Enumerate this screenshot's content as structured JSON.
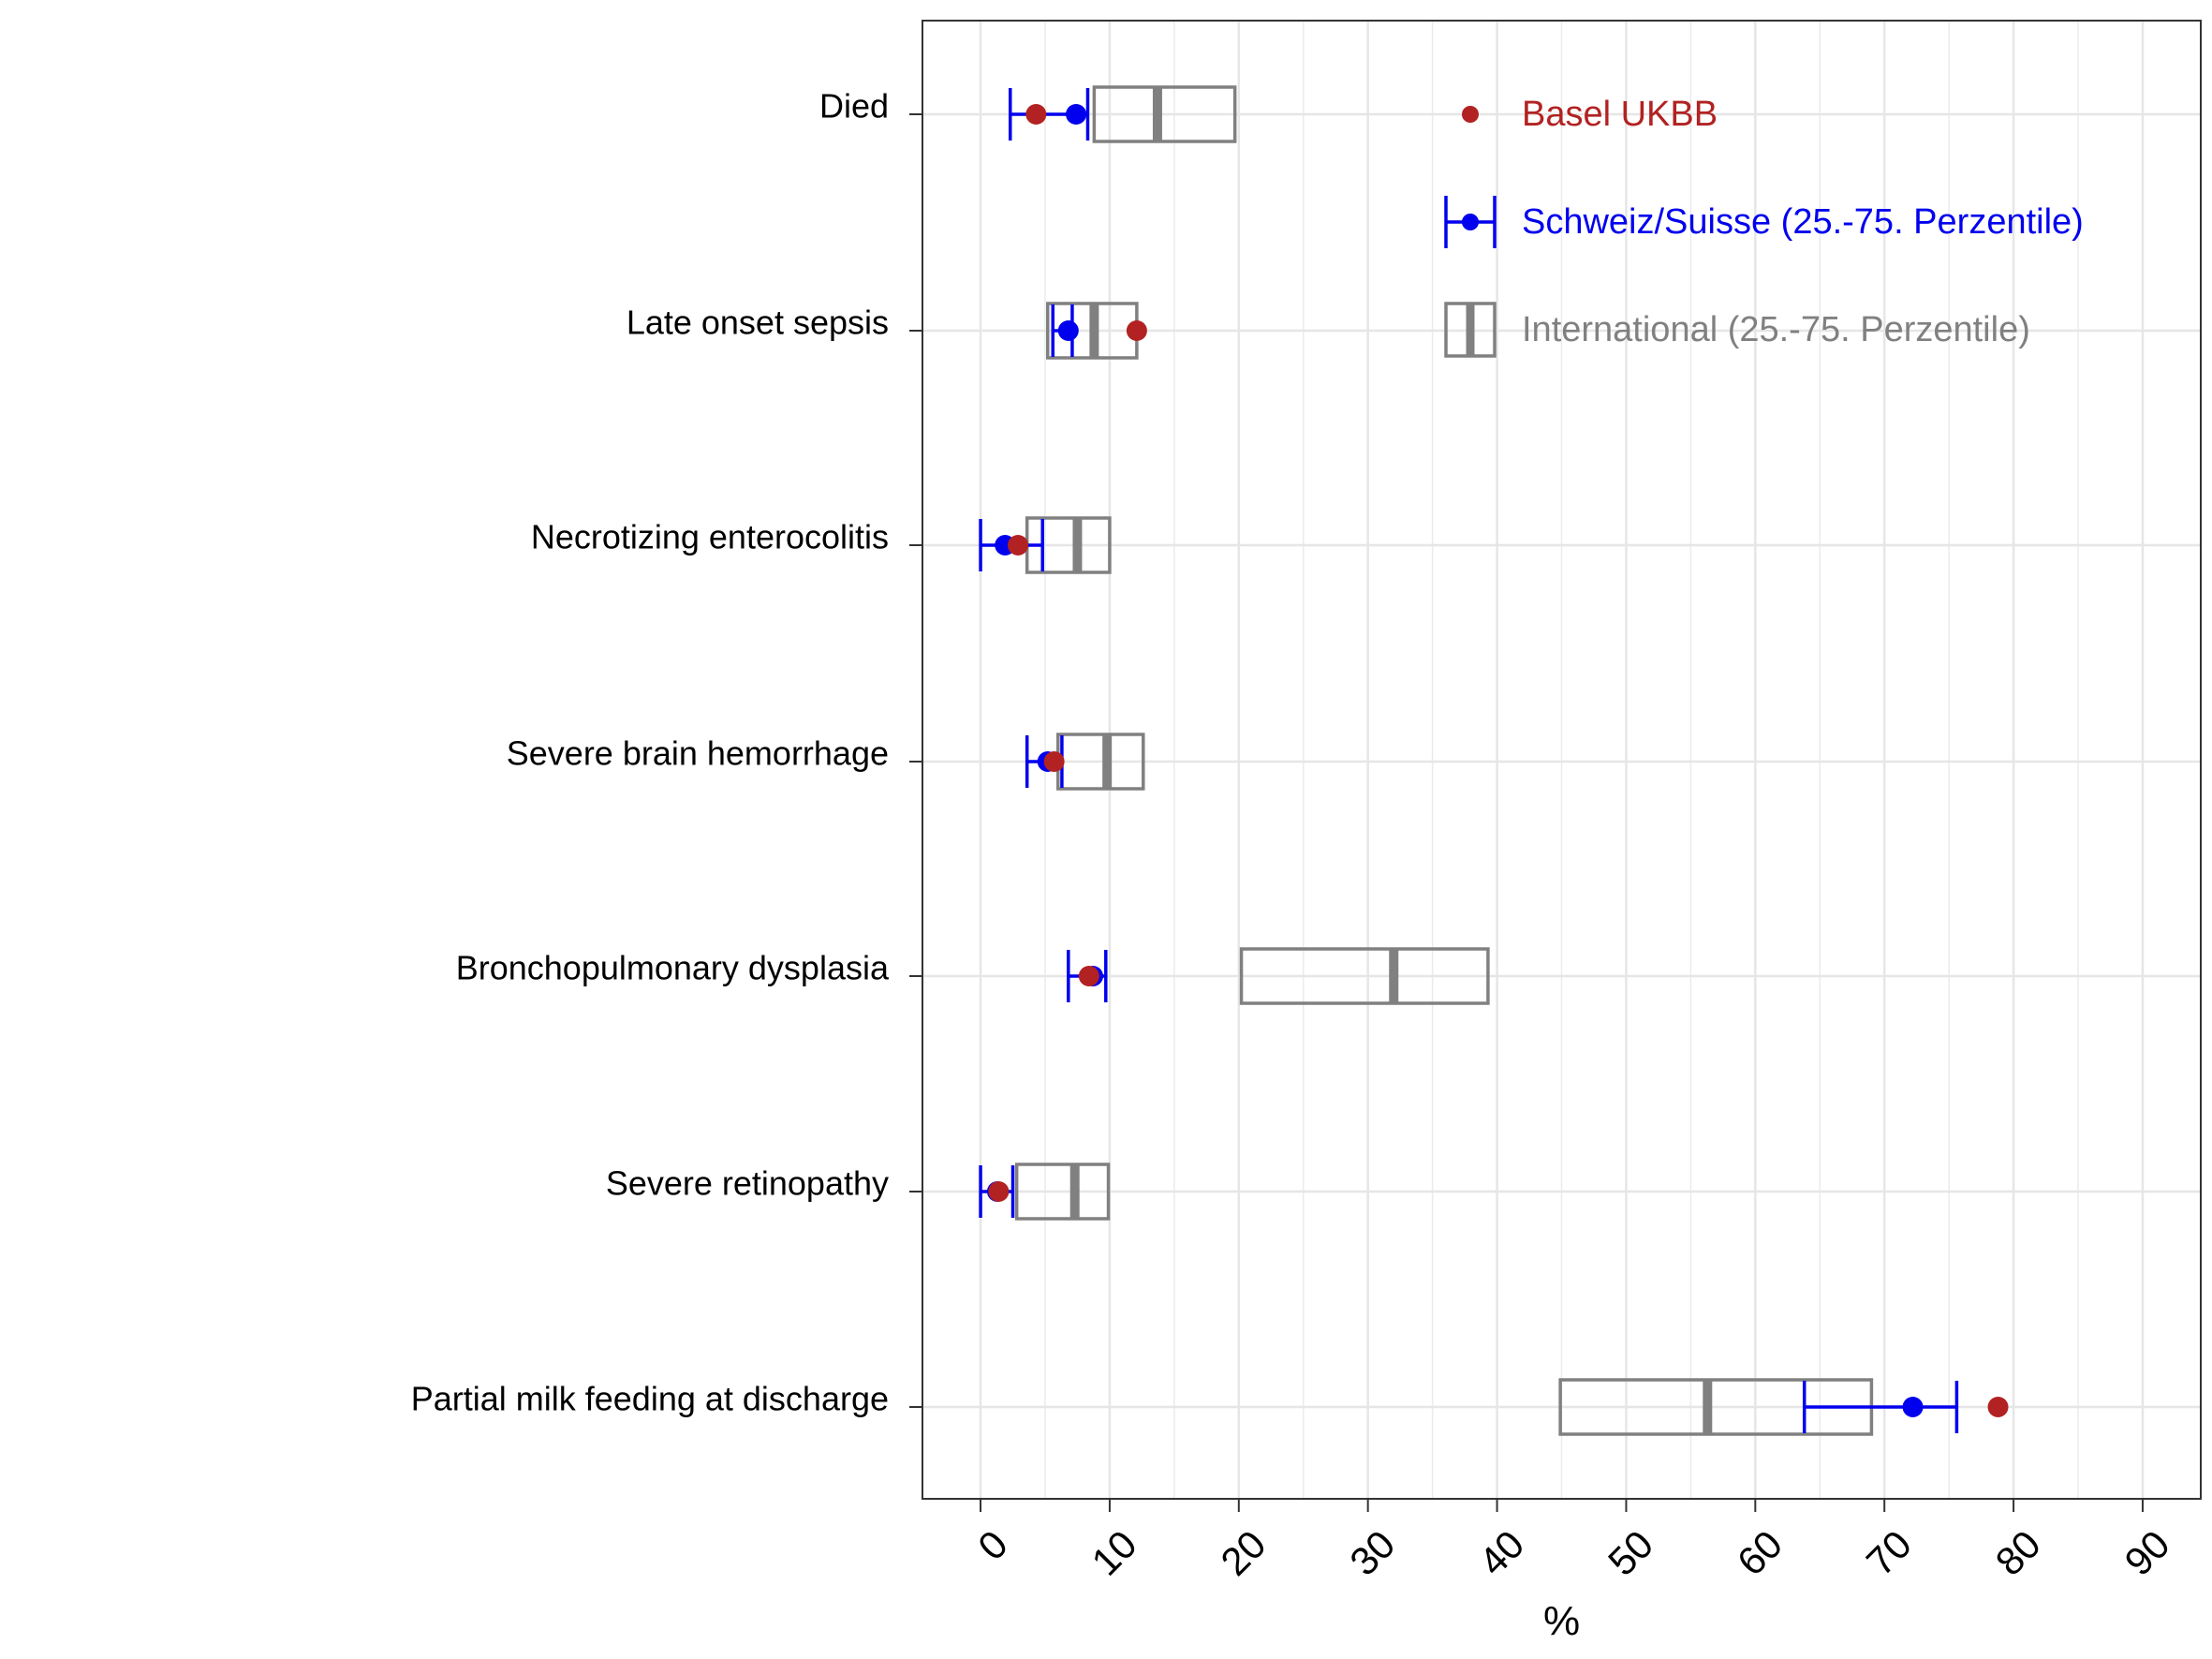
{
  "chart_data": {
    "type": "box",
    "title": "",
    "xlabel": "%",
    "ylabel": "",
    "xlim": [
      -4.5,
      94.5
    ],
    "x_ticks": [
      0,
      10,
      20,
      30,
      40,
      50,
      60,
      70,
      80,
      90
    ],
    "x_tick_labels": [
      "0",
      "10",
      "20",
      "30",
      "40",
      "50",
      "60",
      "70",
      "80",
      "90"
    ],
    "grid": true,
    "legend_position": "top-right",
    "categories": [
      "Died",
      "Late onset sepsis",
      "Necrotizing enterocolitis",
      "Severe brain hemorrhage",
      "Bronchopulmonary dysplasia",
      "Severe retinopathy",
      "Partial milk feeding at discharge"
    ],
    "series": [
      {
        "name": "Basel UKBB",
        "kind": "point",
        "color": "#b22222",
        "values": [
          4.3,
          12.1,
          2.9,
          5.7,
          8.4,
          1.4,
          78.8
        ]
      },
      {
        "name": "Schweiz/Suisse (25.-75. Perzentile)",
        "kind": "point-range",
        "color": "#0000ee",
        "median": [
          7.4,
          6.8,
          1.9,
          5.2,
          8.7,
          1.3,
          72.2
        ],
        "q1": [
          2.3,
          5.6,
          0.0,
          3.6,
          6.8,
          0.0,
          63.8
        ],
        "q3": [
          8.3,
          7.1,
          4.8,
          6.3,
          9.7,
          2.5,
          75.6
        ]
      },
      {
        "name": "International (25.-75. Perzentile)",
        "kind": "box",
        "color": "#808080",
        "median": [
          13.7,
          8.8,
          7.5,
          9.8,
          32.0,
          7.3,
          56.3
        ],
        "q1": [
          8.8,
          5.2,
          3.6,
          6.0,
          20.2,
          2.8,
          44.9
        ],
        "q3": [
          19.7,
          12.1,
          10.0,
          12.6,
          39.3,
          9.9,
          69.0
        ]
      }
    ]
  }
}
